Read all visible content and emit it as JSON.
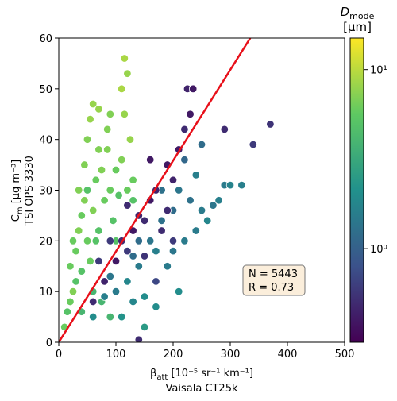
{
  "chart_data": {
    "type": "scatter",
    "xlabel": {
      "main": "β",
      "sub": "att",
      "rest": " [10⁻⁵ sr⁻¹ km⁻¹]"
    },
    "xlabel2": "Vaisala CT25k",
    "ylabel": {
      "main": "C",
      "sub": "m",
      "rest": " [μg m⁻³]"
    },
    "ylabel2": "TSI OPS 3330",
    "colorbar_label": {
      "main": "D",
      "sub": "mode",
      "unit": "[μm]"
    },
    "colormap": "viridis",
    "clim": [
      0.3,
      15
    ],
    "cticks": [
      {
        "value": 1,
        "label": "10⁰"
      },
      {
        "value": 10,
        "label": "10¹"
      }
    ],
    "clog": true,
    "xlim": [
      0,
      500
    ],
    "xticks": [
      0,
      100,
      200,
      300,
      400,
      500
    ],
    "ylim": [
      0,
      60
    ],
    "yticks": [
      0,
      10,
      20,
      30,
      40,
      50,
      60
    ],
    "series": [
      {
        "x": [
          10,
          15,
          20,
          25,
          30,
          30,
          35,
          40,
          40,
          45,
          50,
          50,
          55,
          60,
          60,
          65,
          70,
          70,
          75,
          80,
          80,
          85,
          90,
          95,
          100,
          105,
          110,
          110,
          115,
          120,
          120,
          125,
          130,
          45,
          35,
          25,
          55,
          90,
          85,
          65,
          40,
          60,
          75,
          90,
          20,
          50,
          100,
          130,
          115,
          70,
          100,
          120,
          140,
          150,
          160,
          170,
          180,
          190,
          200,
          210,
          220,
          230,
          240,
          250,
          260,
          270,
          280,
          290,
          300,
          320,
          210,
          170,
          150,
          130,
          110,
          80,
          90,
          250,
          220,
          180,
          140,
          60,
          200,
          240,
          130,
          60,
          80,
          100,
          110,
          120,
          130,
          140,
          150,
          160,
          170,
          180,
          190,
          200,
          210,
          220,
          225,
          235,
          290,
          370,
          340,
          90,
          120,
          150,
          170,
          200,
          140,
          70,
          160,
          230,
          190
        ],
        "y": [
          3,
          6,
          8,
          10,
          12,
          18,
          22,
          25,
          14,
          28,
          20,
          30,
          16,
          26,
          47,
          32,
          22,
          46,
          34,
          28,
          12,
          38,
          30,
          24,
          34,
          29,
          50,
          36,
          56,
          53,
          30,
          40,
          32,
          35,
          30,
          20,
          44,
          45,
          42,
          20,
          6,
          10,
          8,
          5,
          15,
          40,
          20,
          28,
          45,
          38,
          10,
          12,
          15,
          9,
          20,
          18,
          24,
          15,
          26,
          30,
          20,
          28,
          33,
          26,
          24,
          27,
          28,
          31,
          31,
          31,
          10,
          7,
          3,
          8,
          5,
          9,
          13,
          39,
          36,
          30,
          20,
          5,
          18,
          22,
          17,
          8,
          12,
          16,
          20,
          18,
          22,
          25,
          24,
          28,
          30,
          22,
          35,
          32,
          38,
          42,
          50,
          50,
          42,
          43,
          39,
          20,
          27,
          17,
          12,
          20,
          0.5,
          16,
          36,
          45,
          26
        ],
        "c": [
          6,
          5,
          6,
          7,
          5,
          6,
          7,
          6,
          5,
          7,
          6,
          5,
          6,
          7,
          8,
          6,
          5,
          8,
          7,
          6,
          5,
          7,
          6,
          5,
          6,
          5,
          9,
          7,
          9,
          8,
          6,
          8,
          6,
          7,
          7,
          6,
          8,
          7,
          7,
          5,
          4,
          4,
          4,
          4,
          6,
          7,
          5,
          5,
          8,
          7,
          1.5,
          1.8,
          1.5,
          2,
          1.4,
          1.6,
          1.3,
          1.5,
          1.2,
          1.4,
          1.5,
          1.3,
          1.6,
          1.5,
          1.8,
          1.4,
          1.6,
          1.5,
          1.7,
          1.6,
          2,
          2,
          2.5,
          1.8,
          2.2,
          1.6,
          1.4,
          1.2,
          1.1,
          1.3,
          1.2,
          2,
          1.4,
          1.5,
          1.2,
          0.5,
          0.45,
          0.4,
          0.5,
          0.6,
          0.4,
          0.45,
          0.5,
          0.4,
          0.45,
          0.5,
          0.4,
          0.45,
          0.4,
          0.5,
          0.45,
          0.4,
          0.5,
          0.55,
          0.6,
          0.6,
          0.5,
          0.55,
          0.7,
          0.6,
          0.5,
          0.6,
          0.4,
          0.4,
          0.5
        ]
      }
    ],
    "fit_line": {
      "x": [
        0,
        335
      ],
      "y": [
        0,
        60
      ],
      "color": "#e8101a"
    },
    "annotations": [
      "N = 5443",
      "R = 0.73"
    ]
  }
}
